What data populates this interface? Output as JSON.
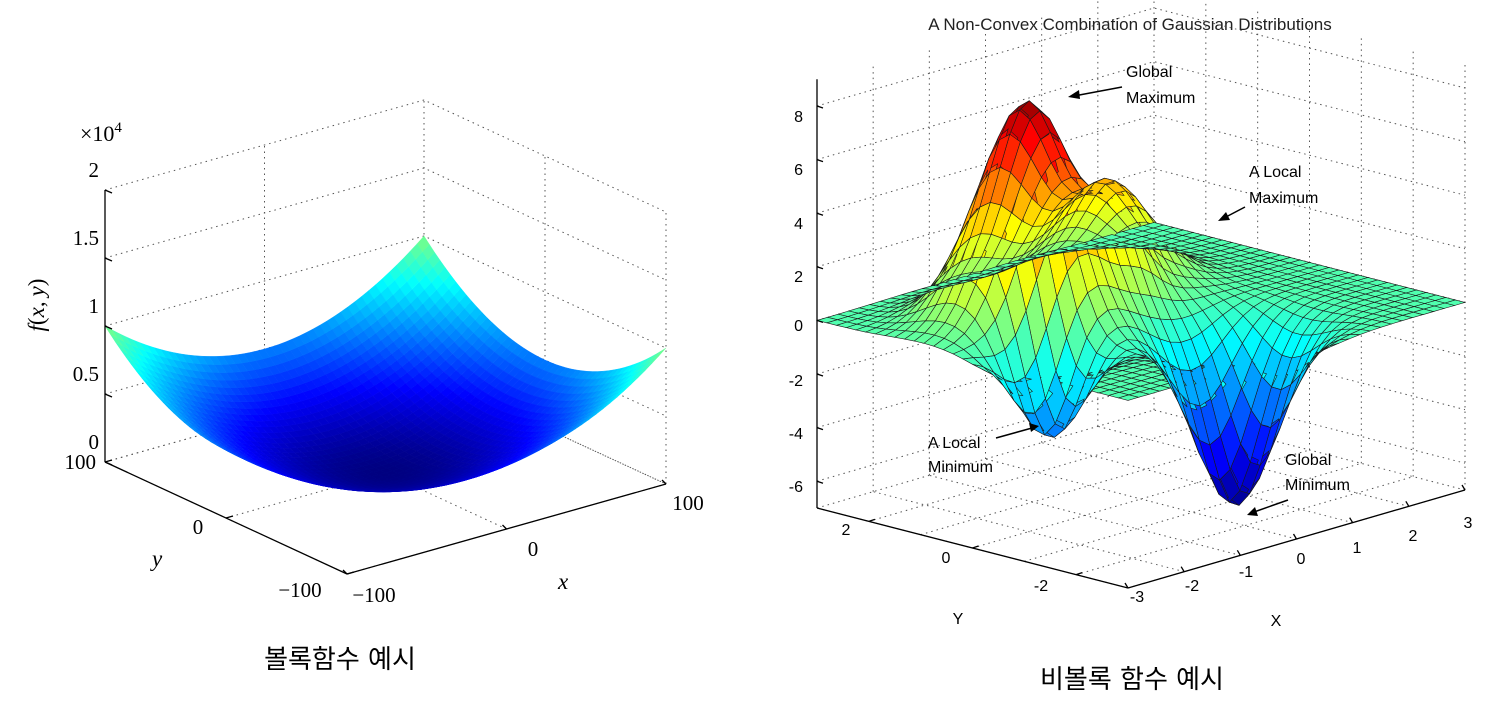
{
  "chart_data": [
    {
      "type": "surface3d",
      "title": "",
      "function": "f(x, y) = x^2 + y^2",
      "xlabel": "x",
      "ylabel": "y",
      "zlabel": "f(x, y)",
      "zlabel_parts": {
        "f": "f",
        "open": "(",
        "x": "x",
        "comma": ",",
        "y": "y",
        "close": ")"
      },
      "z_multiplier": {
        "base": "×10",
        "exp": "4"
      },
      "xlim": [
        -100,
        100
      ],
      "ylim": [
        -100,
        100
      ],
      "zlim": [
        0,
        20000
      ],
      "x_ticks": [
        "−100",
        "0",
        "100"
      ],
      "y_ticks": [
        "−100",
        "0",
        "100"
      ],
      "z_ticks": [
        "0",
        "0.5",
        "1",
        "1.5",
        "2"
      ],
      "colormap": "jet",
      "caption": "볼록함수 예시"
    },
    {
      "type": "surface3d",
      "title": "A Non-Convex Combination of Gaussian Distributions",
      "xlabel": "X",
      "ylabel": "Y",
      "xlim": [
        -3,
        3
      ],
      "ylim": [
        -3,
        3
      ],
      "zlim": [
        -7,
        9
      ],
      "x_ticks": [
        "-3",
        "-2",
        "-1",
        "0",
        "1",
        "2",
        "3"
      ],
      "y_ticks": [
        "-2",
        "0",
        "2"
      ],
      "z_ticks": [
        "-6",
        "-4",
        "-2",
        "0",
        "2",
        "4",
        "6",
        "8"
      ],
      "annotations": {
        "global_max": [
          "Global",
          "Maximum"
        ],
        "local_max": [
          "A Local",
          "Maximum"
        ],
        "local_min": [
          "A Local",
          "Minimum"
        ],
        "global_min": [
          "Global",
          "Minimum"
        ]
      },
      "values": {
        "global_maximum": 8.1,
        "local_maximum": 3.8,
        "local_minimum": -3.7,
        "global_minimum": -6.6
      },
      "colormap": "jet",
      "caption": "비볼록 함수 예시"
    }
  ]
}
